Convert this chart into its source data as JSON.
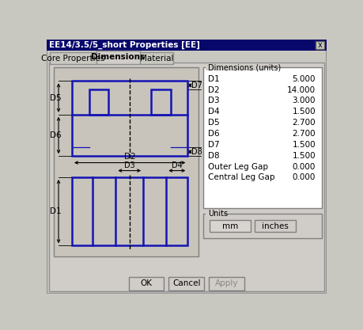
{
  "title_bar_text": "EE14/3.5/5_short Properties [EE]",
  "tabs": [
    "Core Properties",
    "Dimensions",
    "Material"
  ],
  "active_tab": "Dimensions",
  "bg_color": "#c8c8c0",
  "content_bg": "#d0ccc8",
  "draw_bg": "#c8c4bc",
  "white": "#ffffff",
  "title_bar_color": "#08086c",
  "dimensions_title": "Dimensions (units)",
  "dim_labels": [
    "D1",
    "D2",
    "D3",
    "D4",
    "D5",
    "D6",
    "D7",
    "D8",
    "Outer Leg Gap",
    "Central Leg Gap"
  ],
  "dim_values": [
    "5.000",
    "14.000",
    "3.000",
    "1.500",
    "2.700",
    "2.700",
    "1.500",
    "1.500",
    "0.000",
    "0.000"
  ],
  "units_title": "Units",
  "unit_buttons": [
    "mm",
    "inches"
  ],
  "bottom_buttons": [
    "OK",
    "Cancel",
    "Apply"
  ],
  "line_color": "#1414b4",
  "arrow_color": "#000000"
}
